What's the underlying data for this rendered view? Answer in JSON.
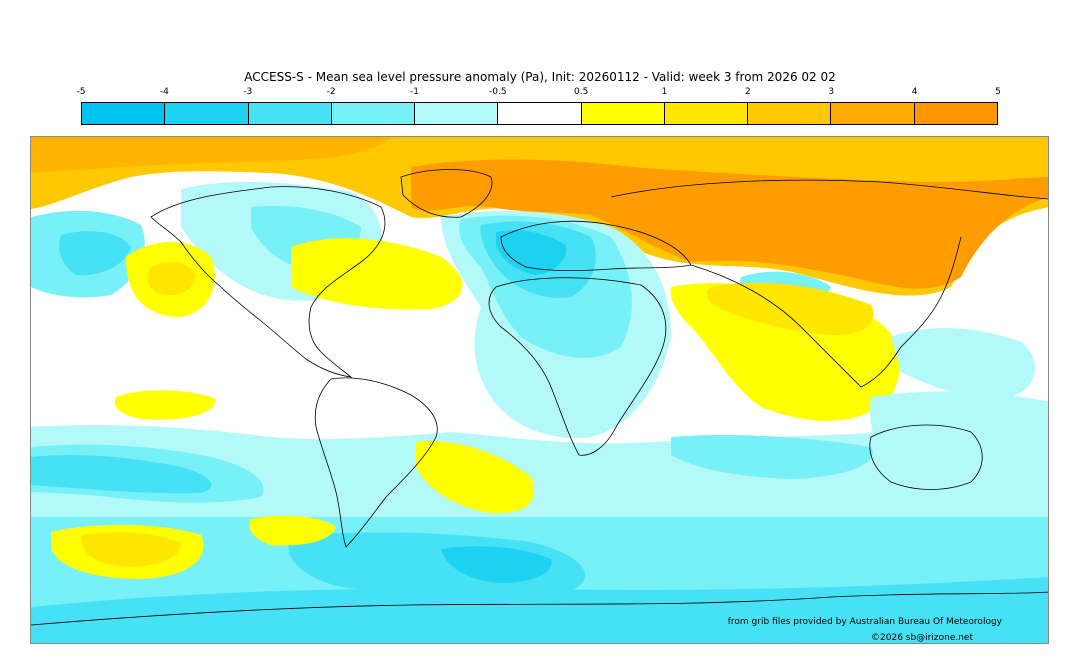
{
  "title": "ACCESS-S - Mean sea level pressure anomaly (Pa), Init: 20260112 - Valid: week 3 from 2026 02 02",
  "colorbar": {
    "ticks": [
      "-5",
      "-4",
      "-3",
      "-2",
      "-1",
      "-0.5",
      "0.5",
      "1",
      "2",
      "3",
      "4",
      "5"
    ],
    "colors": [
      "#00c3ee",
      "#1cd2f0",
      "#46e1f5",
      "#78f0f7",
      "#b4f9fa",
      "#ffffff",
      "#ffff00",
      "#ffe600",
      "#ffc800",
      "#ffaa00",
      "#ff9600"
    ]
  },
  "credits": {
    "source": "from grib files provided by Australian Bureau Of Meteorology",
    "copyright": "©2026 sb@irizone.net"
  }
}
